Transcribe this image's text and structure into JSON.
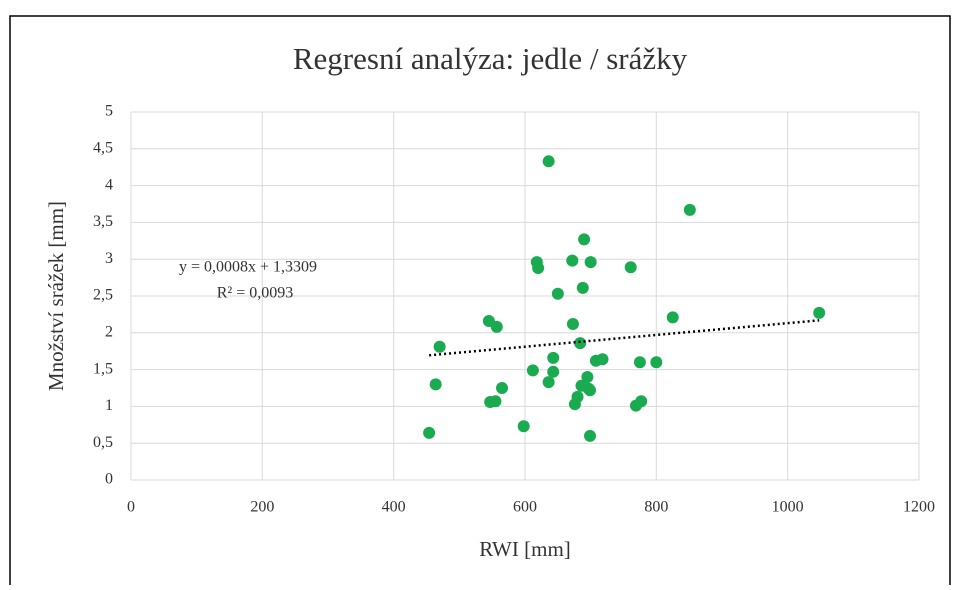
{
  "chart_data": {
    "type": "scatter",
    "title": "Regresní analýza: jedle / srážky",
    "xlabel": "RWI [mm]",
    "ylabel": "Množství srážek [mm]",
    "color": "#1aab50",
    "x": [
      636,
      851,
      690,
      618,
      620,
      672,
      700,
      761,
      650,
      688,
      825,
      1048,
      545,
      557,
      673,
      470,
      684,
      643,
      708,
      718,
      775,
      800,
      612,
      643,
      695,
      464,
      636,
      565,
      686,
      697,
      680,
      676,
      547,
      555,
      777,
      769,
      699,
      598,
      454,
      699
    ],
    "values": [
      4.33,
      3.67,
      3.27,
      2.96,
      2.88,
      2.98,
      2.96,
      2.89,
      2.53,
      2.61,
      2.21,
      2.27,
      2.16,
      2.08,
      2.12,
      1.81,
      1.86,
      1.66,
      1.62,
      1.64,
      1.6,
      1.6,
      1.49,
      1.47,
      1.4,
      1.3,
      1.33,
      1.25,
      1.28,
      1.24,
      1.13,
      1.03,
      1.06,
      1.07,
      1.07,
      1.01,
      1.22,
      0.73,
      0.64,
      0.6
    ],
    "xlim": [
      0,
      1200
    ],
    "xticks": [
      0,
      200,
      400,
      600,
      800,
      1000,
      1200
    ],
    "ylim": [
      0,
      5
    ],
    "yticks": [
      0,
      {
        "value": 0.5,
        "label": "0,5"
      },
      1,
      {
        "value": 1.5,
        "label": "1,5"
      },
      2,
      {
        "value": 2.5,
        "label": "2,5"
      },
      3,
      {
        "value": 3.5,
        "label": "3,5"
      },
      4,
      {
        "value": 4.5,
        "label": "4,5"
      },
      5
    ],
    "grid": true,
    "trendline": {
      "slope": 0.0008,
      "intercept": 1.3309,
      "equation": "y = 0,0008x + 1,3309",
      "r2": "R² = 0,0093"
    }
  }
}
